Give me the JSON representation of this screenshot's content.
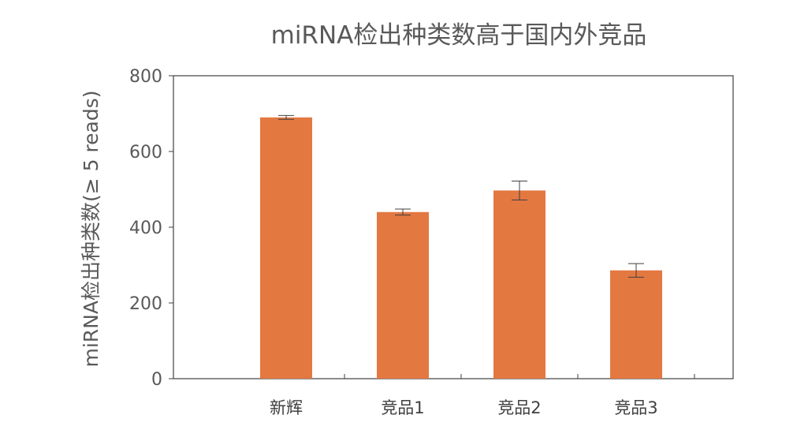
{
  "chart_data": {
    "type": "bar",
    "title": "miRNA检出种类数高于国内外竞品",
    "ylabel": "miRNA检出种类数(≥ 5 reads)",
    "xlabel": "",
    "categories": [
      "新辉",
      "竞品1",
      "竞品2",
      "竞品3"
    ],
    "values": [
      690,
      440,
      497,
      286
    ],
    "error": [
      5,
      8,
      25,
      18
    ],
    "ylim": [
      0,
      800
    ],
    "yticks": [
      "0",
      "200",
      "400",
      "600",
      "800"
    ],
    "grid": false,
    "legend": "none",
    "colors": {
      "bar": "#E37841",
      "axis": "#404040",
      "text": "#595959"
    }
  }
}
